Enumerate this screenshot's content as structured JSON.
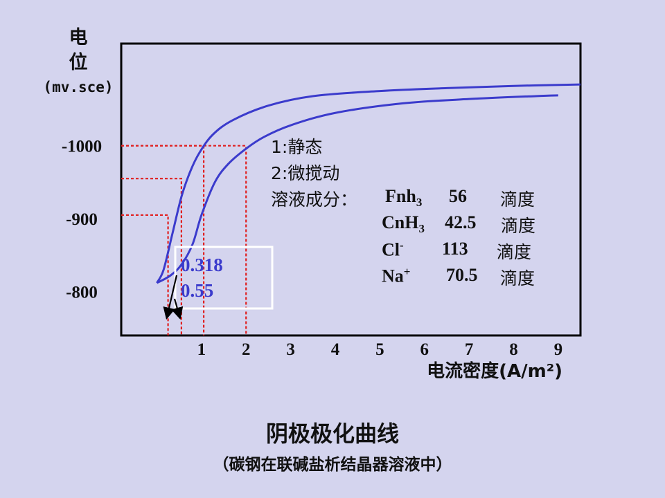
{
  "chart_data": {
    "type": "line",
    "title": "阴极极化曲线",
    "subtitle": "（碳钢在联碱盐析结晶器溶液中）",
    "ylabel_lines": [
      "电",
      "位",
      "(mv.sce)"
    ],
    "xlabel": "电流密度(A/m²)",
    "x_ticks": [
      "1",
      "2",
      "3",
      "4",
      "5",
      "6",
      "7",
      "8",
      "9"
    ],
    "y_ticks": [
      "-800",
      "-900",
      "-1000"
    ],
    "series": [
      {
        "name": "1",
        "color": "#3b3bcc",
        "x": [
          0.0,
          0.15,
          0.35,
          0.55,
          0.75,
          0.95,
          1.25,
          1.7,
          2.5,
          3.5,
          5.0,
          6.5,
          8.0,
          9.5
        ],
        "y": [
          -812,
          -830,
          -880,
          -930,
          -965,
          -990,
          -1015,
          -1035,
          -1055,
          -1068,
          -1075,
          -1079,
          -1082,
          -1084
        ]
      },
      {
        "name": "2",
        "color": "#3b3bcc",
        "x": [
          0.0,
          0.3,
          0.55,
          0.8,
          1.0,
          1.3,
          1.6,
          2.0,
          2.4,
          3.0,
          4.0,
          5.5,
          7.0,
          8.5,
          9.0
        ],
        "y": [
          -812,
          -822,
          -837,
          -865,
          -905,
          -950,
          -975,
          -996,
          -1012,
          -1028,
          -1045,
          -1058,
          -1064,
          -1068,
          -1069
        ]
      }
    ],
    "reference_lines": [
      {
        "x": 0.25,
        "y": -905
      },
      {
        "x": 0.55,
        "y": -955
      },
      {
        "x": 1.05,
        "y": -1000
      },
      {
        "x": 2.0,
        "y": -1000
      }
    ],
    "annotations": [
      "0.318",
      "0.55"
    ],
    "legend": {
      "line1": "1:静态",
      "line2": "2:微搅动",
      "composition_label": "溶液成分：",
      "unit": "滴度",
      "components": [
        {
          "base": "Fnh",
          "sub": "3",
          "sup": "",
          "value": "56"
        },
        {
          "base": "CnH",
          "sub": "3",
          "sup": "",
          "value": "42.5"
        },
        {
          "base": "Cl",
          "sub": "",
          "sup": "-",
          "value": "113"
        },
        {
          "base": "Na",
          "sub": "",
          "sup": "+",
          "value": "70.5"
        }
      ]
    },
    "xlim": [
      -0.8,
      9.5
    ],
    "ylim": [
      -740,
      -1140
    ],
    "grid": false
  }
}
